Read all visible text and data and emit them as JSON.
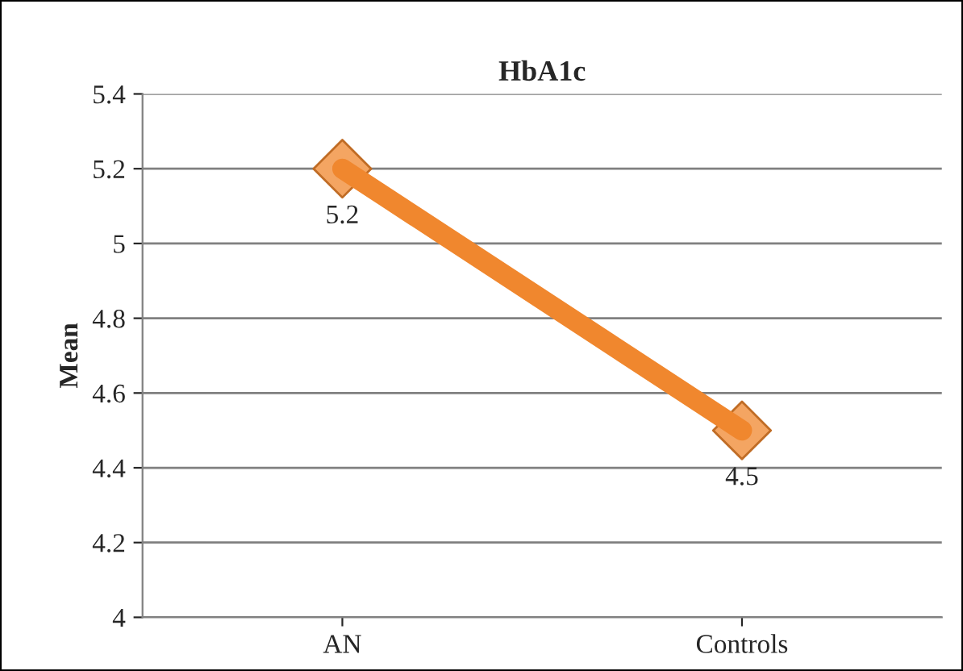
{
  "chart_data": {
    "type": "line",
    "title": "HbA1c",
    "ylabel": "Mean",
    "categories": [
      "AN",
      "Controls"
    ],
    "series": [
      {
        "color": "#f0872e",
        "values": [
          5.2,
          4.5
        ]
      }
    ],
    "ylim": [
      4,
      5.4
    ],
    "yticks": [
      4,
      4.2,
      4.4,
      4.6,
      4.8,
      5,
      5.2,
      5.4
    ],
    "grid": "y",
    "marker": "diamond",
    "line_style": "solid",
    "data_labels": true,
    "legend": false
  }
}
